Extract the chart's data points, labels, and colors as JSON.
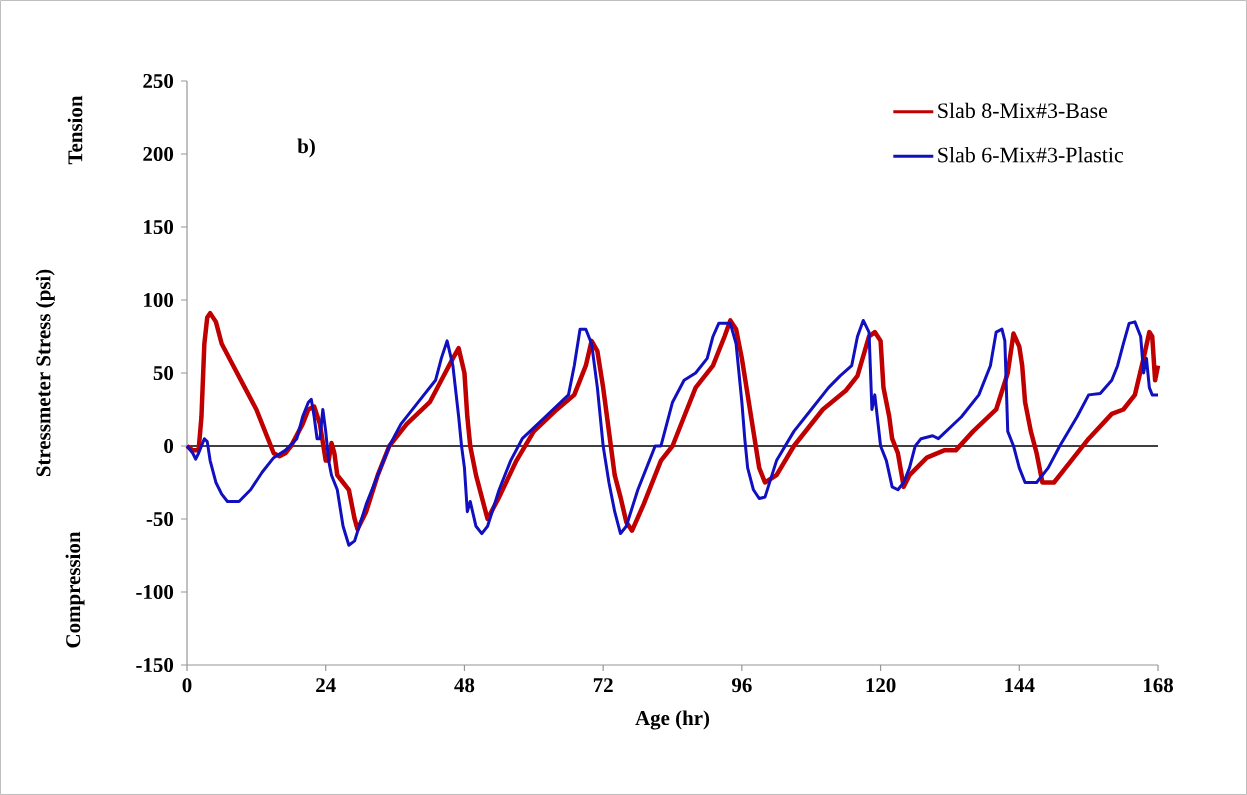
{
  "chart_data": {
    "type": "line",
    "xlabel": "Age (hr)",
    "ylabel": "Stressmeter Stress (psi)",
    "annotations": [
      "b)",
      "Tension",
      "Compression"
    ],
    "xlim": [
      0,
      168
    ],
    "xticks": [
      0,
      24,
      48,
      72,
      96,
      120,
      144,
      168
    ],
    "ylim": [
      -150,
      250
    ],
    "yticks": [
      -150,
      -100,
      -50,
      0,
      50,
      100,
      150,
      200,
      250
    ],
    "grid": false,
    "legend": "top right",
    "line_style": "solid",
    "marker": "none",
    "ref_lines": [
      {
        "axis": "y",
        "value": 0,
        "color": "#000000"
      }
    ],
    "series": [
      {
        "name": "Slab 8-Mix#3-Base",
        "color": "#c00000",
        "x": [
          0,
          1,
          2,
          2.5,
          3,
          3.5,
          4,
          5,
          6,
          8,
          10,
          12,
          14,
          15,
          16,
          17,
          18,
          20,
          21,
          22,
          23,
          24,
          24.5,
          25,
          25.5,
          26,
          27,
          28,
          29,
          29.5,
          31,
          33,
          35,
          38,
          42,
          44,
          46,
          47,
          48,
          48.5,
          49,
          50,
          51,
          52,
          54,
          57,
          60,
          64,
          67,
          69,
          70,
          71,
          72,
          73,
          74,
          75,
          76,
          77,
          79,
          82,
          84,
          86,
          88,
          91,
          93,
          94,
          95,
          96,
          97,
          98,
          99,
          100,
          102,
          105,
          110,
          114,
          116,
          118,
          119,
          120,
          120.5,
          121.5,
          122,
          123,
          124,
          125,
          128,
          131,
          133,
          136,
          140,
          142,
          143,
          144,
          144.5,
          145,
          146,
          147,
          148,
          150,
          152,
          156,
          160,
          162,
          164,
          165.5,
          166.5,
          167,
          167.5,
          168
        ],
        "values": [
          0,
          -3,
          -3,
          20,
          70,
          88,
          91,
          85,
          70,
          55,
          40,
          25,
          5,
          -5,
          -7,
          -5,
          0,
          15,
          25,
          27,
          15,
          -10,
          -10,
          2,
          -5,
          -20,
          -25,
          -30,
          -50,
          -57,
          -45,
          -20,
          0,
          15,
          30,
          45,
          60,
          67,
          50,
          20,
          0,
          -20,
          -35,
          -50,
          -35,
          -10,
          10,
          25,
          35,
          55,
          72,
          65,
          40,
          10,
          -20,
          -35,
          -52,
          -58,
          -40,
          -10,
          0,
          20,
          40,
          55,
          75,
          86,
          80,
          60,
          35,
          10,
          -15,
          -25,
          -20,
          0,
          25,
          38,
          48,
          75,
          78,
          72,
          40,
          20,
          5,
          -5,
          -28,
          -20,
          -8,
          -3,
          -3,
          10,
          25,
          50,
          77,
          68,
          55,
          30,
          10,
          -5,
          -25,
          -25,
          -15,
          5,
          22,
          25,
          35,
          60,
          78,
          75,
          45,
          55
        ]
      },
      {
        "name": "Slab 6-Mix#3-Plastic",
        "color": "#1010c0",
        "x": [
          0,
          1,
          1.5,
          2,
          3,
          3.5,
          4,
          5,
          6,
          7,
          9,
          11,
          13,
          15,
          17,
          19,
          20,
          21,
          21.5,
          22,
          22.5,
          23,
          23.5,
          24,
          24.5,
          25,
          26,
          27,
          28,
          29,
          31,
          33,
          35,
          37,
          40,
          43,
          44,
          45,
          46,
          47,
          47.5,
          48,
          48.5,
          49,
          50,
          51,
          52,
          54,
          56,
          58,
          62,
          66,
          67,
          68,
          69,
          70,
          71,
          72,
          73,
          74,
          75,
          76,
          78,
          80,
          81,
          82,
          84,
          86,
          88,
          90,
          91,
          92,
          94,
          95,
          96,
          96.5,
          97,
          98,
          99,
          100,
          102,
          105,
          108,
          111,
          113,
          115,
          116,
          117,
          118,
          118.5,
          119,
          120,
          121,
          122,
          123,
          124,
          125,
          126,
          127,
          129,
          130,
          134,
          137,
          139,
          140,
          141,
          141.5,
          142,
          143,
          144,
          145,
          147,
          149,
          151,
          154,
          156,
          158,
          160,
          161,
          162,
          163,
          164,
          165,
          165.5,
          166,
          166.5,
          167,
          168
        ],
        "values": [
          0,
          -5,
          -9,
          -5,
          5,
          3,
          -10,
          -25,
          -33,
          -38,
          -38,
          -30,
          -18,
          -8,
          -3,
          5,
          20,
          30,
          32,
          20,
          5,
          5,
          25,
          10,
          -10,
          -20,
          -30,
          -55,
          -68,
          -65,
          -40,
          -20,
          0,
          15,
          30,
          45,
          60,
          72,
          55,
          20,
          0,
          -15,
          -45,
          -38,
          -55,
          -60,
          -55,
          -30,
          -10,
          5,
          20,
          35,
          55,
          80,
          80,
          70,
          40,
          0,
          -25,
          -45,
          -60,
          -55,
          -30,
          -10,
          0,
          0,
          30,
          45,
          50,
          60,
          75,
          84,
          84,
          70,
          30,
          5,
          -15,
          -30,
          -36,
          -35,
          -10,
          10,
          25,
          40,
          48,
          55,
          75,
          86,
          78,
          25,
          35,
          0,
          -10,
          -28,
          -30,
          -25,
          -15,
          0,
          5,
          7,
          5,
          20,
          35,
          55,
          78,
          80,
          72,
          10,
          0,
          -15,
          -25,
          -25,
          -15,
          0,
          20,
          35,
          36,
          45,
          55,
          70,
          84,
          85,
          75,
          50,
          60,
          40,
          35,
          35
        ]
      }
    ]
  }
}
